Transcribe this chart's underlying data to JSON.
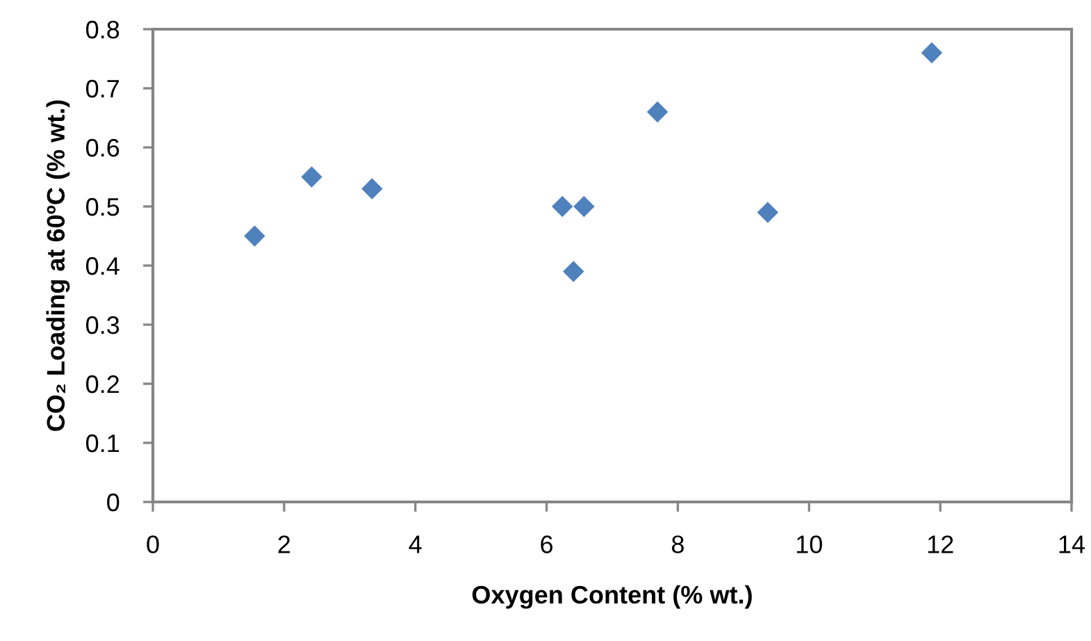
{
  "chart_data": {
    "type": "scatter",
    "xlabel": "Oxygen Content (% wt.)",
    "ylabel": "CO₂ Loading at 60ºC (% wt.)",
    "x": [
      1.55,
      2.42,
      3.34,
      6.24,
      6.57,
      6.41,
      7.69,
      9.37,
      11.87
    ],
    "values": [
      0.45,
      0.55,
      0.53,
      0.5,
      0.5,
      0.39,
      0.66,
      0.49,
      0.76
    ],
    "color": "#4f81bd",
    "marker": "diamond",
    "xlim": [
      0,
      14
    ],
    "xticks": [
      0,
      2,
      4,
      6,
      8,
      10,
      12,
      14
    ],
    "ylim": [
      0,
      0.8
    ],
    "yticks": [
      0,
      0.1,
      0.2,
      0.3,
      0.4,
      0.5,
      0.6,
      0.7,
      0.8
    ],
    "grid": false,
    "legend": false
  }
}
